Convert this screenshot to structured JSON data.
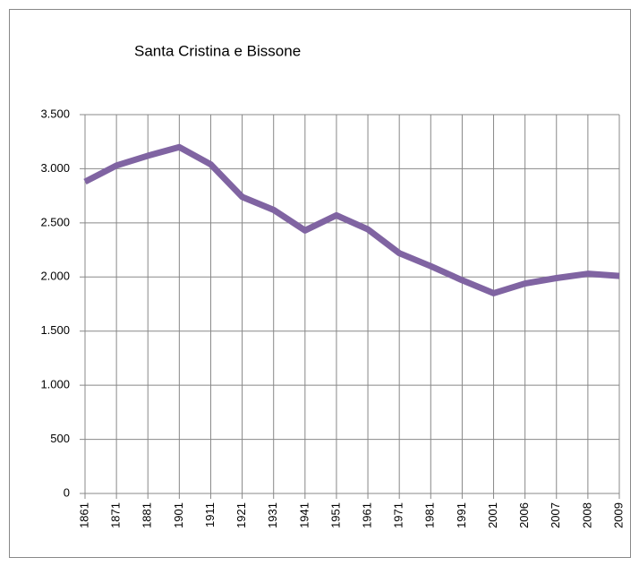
{
  "chart_data": {
    "type": "line",
    "title": "Santa Cristina e Bissone",
    "categories": [
      "1861",
      "1871",
      "1881",
      "1901",
      "1911",
      "1921",
      "1931",
      "1941",
      "1951",
      "1961",
      "1971",
      "1981",
      "1991",
      "2001",
      "2006",
      "2007",
      "2008",
      "2009"
    ],
    "series": [
      {
        "name": "Santa Cristina e Bissone",
        "color": "#8064a2",
        "values": [
          2880,
          3030,
          3120,
          3200,
          3040,
          2740,
          2620,
          2430,
          2570,
          2440,
          2220,
          2100,
          1970,
          1850,
          1940,
          1990,
          2030,
          2010
        ]
      }
    ],
    "ylim": [
      0,
      3500
    ],
    "yticks": [
      0,
      {
        "value": 500,
        "label": "500"
      },
      {
        "value": 1000,
        "label": "1.000"
      },
      {
        "value": 1500,
        "label": "1.500"
      },
      {
        "value": 2000,
        "label": "2.000"
      },
      {
        "value": 2500,
        "label": "2.500"
      },
      {
        "value": 3000,
        "label": "3.000"
      },
      {
        "value": 3500,
        "label": "3.500"
      }
    ],
    "grid": true,
    "legend": false
  }
}
